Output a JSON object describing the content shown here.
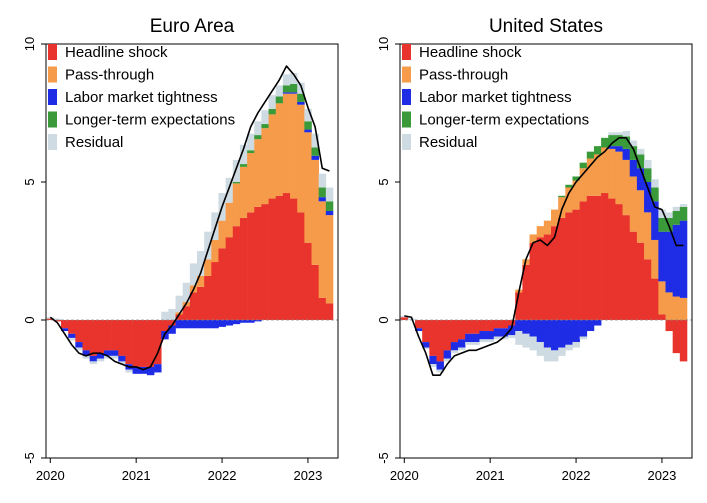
{
  "chart_data": [
    {
      "type": "bar",
      "stacked": true,
      "title": "Euro Area",
      "xlabel": "",
      "ylabel": "",
      "ylim": [
        -5,
        10
      ],
      "xlim": [
        2019.95,
        2023.35
      ],
      "yticks": [
        -5,
        0,
        5,
        10
      ],
      "xticks": [
        2020,
        2021,
        2022,
        2023
      ],
      "grid": false,
      "legend_position": "top-left",
      "months": 40,
      "start_year": 2020.0,
      "colors": {
        "Headline shock": "#e8342c",
        "Pass-through": "#f59b49",
        "Labor market tightness": "#1f2ce6",
        "Longer-term expectations": "#3a9a3a",
        "Residual": "#cfdbe3",
        "Total": "#000000"
      },
      "series": [
        {
          "name": "Headline shock",
          "values": [
            0.05,
            -0.05,
            -0.3,
            -0.5,
            -0.8,
            -1.1,
            -1.3,
            -1.2,
            -1.1,
            -1.1,
            -1.3,
            -1.6,
            -1.7,
            -1.7,
            -1.7,
            -1.6,
            -0.4,
            -0.2,
            0.2,
            0.5,
            1.0,
            1.2,
            1.6,
            2.1,
            2.6,
            3.0,
            3.4,
            3.7,
            3.9,
            4.1,
            4.2,
            4.4,
            4.5,
            4.6,
            4.4,
            3.9,
            2.8,
            2.0,
            0.8,
            0.6
          ]
        },
        {
          "name": "Pass-through",
          "values": [
            0,
            0,
            0,
            0,
            0,
            0,
            0,
            0,
            0,
            0,
            0,
            0,
            0,
            0,
            0,
            0,
            0,
            0,
            0.08,
            0.15,
            0.25,
            0.4,
            0.6,
            0.8,
            1.0,
            1.25,
            1.55,
            1.85,
            2.15,
            2.45,
            2.75,
            3.05,
            3.35,
            3.6,
            3.8,
            3.9,
            4.0,
            3.8,
            3.5,
            3.2
          ]
        },
        {
          "name": "Labor market tightness",
          "values": [
            0,
            0,
            -0.1,
            -0.15,
            -0.2,
            -0.2,
            -0.2,
            -0.2,
            -0.2,
            -0.2,
            -0.2,
            -0.2,
            -0.25,
            -0.25,
            -0.3,
            -0.3,
            -0.3,
            -0.3,
            -0.3,
            -0.3,
            -0.3,
            -0.3,
            -0.3,
            -0.3,
            -0.25,
            -0.2,
            -0.15,
            -0.1,
            -0.1,
            -0.05,
            0,
            0,
            0,
            0.05,
            0.05,
            0.1,
            0.1,
            0.15,
            0.15,
            0.15
          ]
        },
        {
          "name": "Longer-term expectations",
          "values": [
            0,
            0,
            0,
            0,
            0,
            0,
            0,
            0,
            0,
            0,
            0,
            0,
            0,
            0,
            0,
            0,
            0,
            0,
            0,
            0,
            0,
            0,
            0,
            0,
            0,
            0,
            0.05,
            0.1,
            0.1,
            0.15,
            0.15,
            0.2,
            0.25,
            0.25,
            0.3,
            0.3,
            0.3,
            0.3,
            0.35,
            0.35
          ]
        },
        {
          "name": "Residual",
          "values": [
            0.05,
            0.05,
            0,
            -0.1,
            -0.1,
            -0.1,
            -0.1,
            -0.1,
            -0.1,
            -0.1,
            -0.1,
            -0.1,
            0,
            0,
            0,
            0,
            0.3,
            0.4,
            0.6,
            0.7,
            0.8,
            0.9,
            1.0,
            1.0,
            1.0,
            0.9,
            0.8,
            0.7,
            0.6,
            0.5,
            0.5,
            0.5,
            0.4,
            0.4,
            0.4,
            0.4,
            0.45,
            0.5,
            0.5,
            0.5
          ]
        }
      ],
      "total": [
        0.1,
        -0.1,
        -0.5,
        -0.9,
        -1.2,
        -1.3,
        -1.2,
        -1.2,
        -1.3,
        -1.5,
        -1.6,
        -1.7,
        -1.7,
        -1.8,
        -1.7,
        -1.2,
        -0.5,
        -0.2,
        0.2,
        0.6,
        1.1,
        1.7,
        2.5,
        3.3,
        4.1,
        4.8,
        5.5,
        6.2,
        7.0,
        7.5,
        7.9,
        8.3,
        8.7,
        9.2,
        8.9,
        8.5,
        7.7,
        7.0,
        5.5,
        5.4
      ]
    },
    {
      "type": "bar",
      "stacked": true,
      "title": "United States",
      "xlabel": "",
      "ylabel": "",
      "ylim": [
        -5,
        10
      ],
      "xlim": [
        2019.95,
        2023.35
      ],
      "yticks": [
        -5,
        0,
        5,
        10
      ],
      "xticks": [
        2020,
        2021,
        2022,
        2023
      ],
      "grid": false,
      "legend_position": "top-left",
      "months": 40,
      "start_year": 2020.0,
      "colors": {
        "Headline shock": "#e8342c",
        "Pass-through": "#f59b49",
        "Labor market tightness": "#1f2ce6",
        "Longer-term expectations": "#3a9a3a",
        "Residual": "#cfdbe3",
        "Total": "#000000"
      },
      "series": [
        {
          "name": "Headline shock",
          "values": [
            0.1,
            0,
            -0.3,
            -0.8,
            -1.3,
            -1.5,
            -1.1,
            -0.8,
            -0.7,
            -0.5,
            -0.5,
            -0.4,
            -0.4,
            -0.3,
            -0.3,
            -0.2,
            1.0,
            2.0,
            2.8,
            3.0,
            3.1,
            3.4,
            3.7,
            3.9,
            4.0,
            4.3,
            4.5,
            4.5,
            4.6,
            4.4,
            4.2,
            3.8,
            3.2,
            2.8,
            2.2,
            1.5,
            0.2,
            -0.4,
            -1.2,
            -1.5
          ]
        },
        {
          "name": "Pass-through",
          "values": [
            0,
            0,
            0,
            0,
            0,
            0,
            0,
            0,
            0,
            0,
            0,
            0,
            0,
            0,
            0,
            0,
            0.1,
            0.2,
            0.3,
            0.4,
            0.5,
            0.6,
            0.75,
            0.9,
            1.05,
            1.2,
            1.35,
            1.5,
            1.65,
            1.8,
            1.9,
            2.0,
            2.0,
            1.9,
            1.7,
            1.4,
            1.2,
            1.0,
            0.85,
            0.8
          ]
        },
        {
          "name": "Labor market tightness",
          "values": [
            0,
            0,
            -0.1,
            -0.2,
            -0.3,
            -0.3,
            -0.3,
            -0.3,
            -0.3,
            -0.3,
            -0.3,
            -0.3,
            -0.3,
            -0.3,
            -0.3,
            -0.35,
            -0.4,
            -0.5,
            -0.6,
            -0.8,
            -1.0,
            -1.1,
            -1.0,
            -0.9,
            -0.8,
            -0.6,
            -0.4,
            -0.2,
            0,
            0.1,
            0.2,
            0.4,
            0.6,
            0.8,
            1.1,
            1.4,
            1.8,
            2.2,
            2.6,
            2.8
          ]
        },
        {
          "name": "Longer-term expectations",
          "values": [
            0,
            0,
            0,
            0,
            0,
            0,
            0,
            0,
            0,
            0,
            0,
            0,
            0,
            0,
            0,
            0,
            0,
            0,
            0,
            0,
            0,
            0,
            0.05,
            0.1,
            0.15,
            0.2,
            0.25,
            0.3,
            0.35,
            0.4,
            0.4,
            0.45,
            0.5,
            0.5,
            0.5,
            0.5,
            0.5,
            0.5,
            0.5,
            0.5
          ]
        },
        {
          "name": "Residual",
          "values": [
            0.05,
            0.05,
            0,
            -0.05,
            -0.1,
            -0.1,
            -0.1,
            -0.1,
            -0.1,
            -0.1,
            -0.1,
            -0.1,
            -0.1,
            -0.1,
            -0.1,
            -0.1,
            -0.5,
            -0.5,
            -0.5,
            -0.5,
            -0.5,
            -0.4,
            -0.3,
            -0.2,
            -0.2,
            -0.1,
            0,
            0,
            0,
            0.1,
            0.1,
            0.2,
            0.2,
            0.2,
            0.3,
            0.3,
            0.3,
            0.2,
            0.15,
            0.1
          ]
        }
      ],
      "total": [
        0.15,
        0.1,
        -0.6,
        -1.2,
        -2.0,
        -2.0,
        -1.6,
        -1.3,
        -1.2,
        -1.1,
        -1.1,
        -1.0,
        -0.9,
        -0.8,
        -0.6,
        -0.3,
        1.0,
        2.2,
        2.8,
        2.9,
        2.7,
        3.0,
        4.0,
        4.6,
        5.0,
        5.3,
        5.6,
        5.9,
        6.1,
        6.4,
        6.6,
        6.6,
        6.2,
        5.5,
        4.8,
        4.1,
        4.0,
        3.4,
        2.7,
        2.7
      ]
    }
  ]
}
